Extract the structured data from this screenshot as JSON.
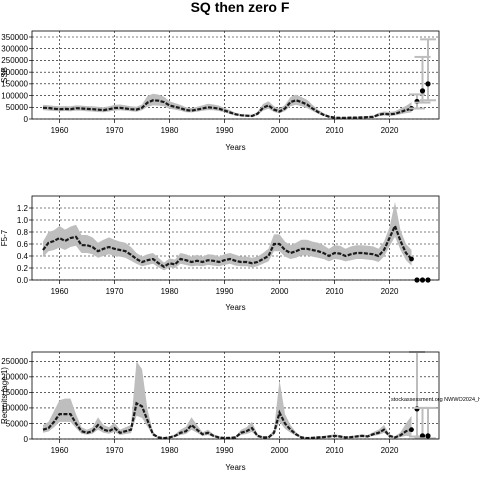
{
  "title": "SQ then zero F",
  "watermark": "stockassessment.org NWWO2024_h",
  "colors": {
    "band": "#bebebe",
    "line": "#1a1a1a",
    "grid": "#000000"
  },
  "chart_data": [
    {
      "type": "area",
      "xlabel": "Years",
      "ylabel": "SSB",
      "xlim": [
        1955,
        2029
      ],
      "ylim": [
        0,
        350000
      ],
      "xticks": [
        1960,
        1970,
        1980,
        1990,
        2000,
        2010,
        2020
      ],
      "yticks": [
        0,
        50000,
        100000,
        150000,
        200000,
        250000,
        300000,
        350000
      ],
      "grid": true,
      "series": [
        {
          "x": [
            1957,
            1958,
            1959,
            1960,
            1961,
            1962,
            1963,
            1964,
            1965,
            1966,
            1967,
            1968,
            1969,
            1970,
            1971,
            1972,
            1973,
            1974,
            1975,
            1976,
            1977,
            1978,
            1979,
            1980,
            1981,
            1982,
            1983,
            1984,
            1985,
            1986,
            1987,
            1988,
            1989,
            1990,
            1991,
            1992,
            1993,
            1994,
            1995,
            1996,
            1997,
            1998,
            1999,
            2000,
            2001,
            2002,
            2003,
            2004,
            2005,
            2006,
            2007,
            2008,
            2009,
            2010,
            2011,
            2012,
            2013,
            2014,
            2015,
            2016,
            2017,
            2018,
            2019,
            2020,
            2021,
            2022,
            2023,
            2024
          ],
          "y": [
            48000,
            47000,
            44000,
            42000,
            43000,
            42000,
            46000,
            45000,
            43000,
            42000,
            40000,
            38000,
            42000,
            47000,
            48000,
            45000,
            42000,
            40000,
            48000,
            70000,
            80000,
            78000,
            72000,
            58000,
            52000,
            46000,
            38000,
            36000,
            40000,
            45000,
            50000,
            48000,
            44000,
            36000,
            28000,
            20000,
            16000,
            14000,
            13000,
            22000,
            48000,
            58000,
            40000,
            32000,
            45000,
            72000,
            80000,
            72000,
            62000,
            45000,
            30000,
            18000,
            10000,
            6000,
            5000,
            5000,
            6000,
            6000,
            7000,
            8000,
            9000,
            18000,
            22000,
            20000,
            22000,
            30000,
            38000,
            45000
          ],
          "low": [
            38000,
            36000,
            34000,
            33000,
            34000,
            33000,
            36000,
            35000,
            33000,
            32000,
            30000,
            29000,
            32000,
            36000,
            37000,
            35000,
            33000,
            31000,
            37000,
            52000,
            58000,
            57000,
            54000,
            44000,
            40000,
            35000,
            29000,
            28000,
            31000,
            35000,
            38000,
            37000,
            34000,
            28000,
            21000,
            15000,
            12000,
            10000,
            9000,
            16000,
            36000,
            44000,
            30000,
            24000,
            34000,
            55000,
            60000,
            55000,
            47000,
            34000,
            23000,
            13000,
            7000,
            4000,
            3000,
            3000,
            4000,
            4000,
            5000,
            5000,
            6000,
            12000,
            15000,
            13000,
            15000,
            20000,
            25000,
            28000
          ],
          "high": [
            60000,
            59000,
            56000,
            54000,
            55000,
            54000,
            58000,
            57000,
            55000,
            54000,
            52000,
            50000,
            54000,
            60000,
            62000,
            58000,
            54000,
            52000,
            62000,
            98000,
            108000,
            104000,
            95000,
            76000,
            68000,
            60000,
            50000,
            47000,
            52000,
            58000,
            65000,
            62000,
            57000,
            47000,
            37000,
            27000,
            21000,
            19000,
            18000,
            30000,
            64000,
            76000,
            54000,
            43000,
            60000,
            94000,
            104000,
            94000,
            82000,
            60000,
            40000,
            25000,
            15000,
            9000,
            8000,
            8000,
            9000,
            9000,
            10000,
            12000,
            14000,
            26000,
            32000,
            30000,
            33000,
            45000,
            56000,
            72000
          ]
        }
      ],
      "projection": {
        "x": [
          2025,
          2026,
          2027
        ],
        "y": [
          75000,
          120000,
          150000
        ],
        "low": [
          45000,
          70000,
          80000
        ],
        "high": [
          105000,
          265000,
          340000
        ]
      }
    },
    {
      "type": "area",
      "xlabel": "Years",
      "ylabel": "F5-7",
      "xlim": [
        1955,
        2029
      ],
      "ylim": [
        0,
        1.4
      ],
      "xticks": [
        1960,
        1970,
        1980,
        1990,
        2000,
        2010,
        2020
      ],
      "yticks": [
        0.0,
        0.2,
        0.4,
        0.6,
        0.8,
        1.0,
        1.2
      ],
      "ytick_labels": [
        "0.0",
        "0.2",
        "0.4",
        "0.6",
        "0.8",
        "1.0",
        "1.2"
      ],
      "grid": true,
      "series": [
        {
          "x": [
            1957,
            1958,
            1959,
            1960,
            1961,
            1962,
            1963,
            1964,
            1965,
            1966,
            1967,
            1968,
            1969,
            1970,
            1971,
            1972,
            1973,
            1974,
            1975,
            1976,
            1977,
            1978,
            1979,
            1980,
            1981,
            1982,
            1983,
            1984,
            1985,
            1986,
            1987,
            1988,
            1989,
            1990,
            1991,
            1992,
            1993,
            1994,
            1995,
            1996,
            1997,
            1998,
            1999,
            2000,
            2001,
            2002,
            2003,
            2004,
            2005,
            2006,
            2007,
            2008,
            2009,
            2010,
            2011,
            2012,
            2013,
            2014,
            2015,
            2016,
            2017,
            2018,
            2019,
            2020,
            2021,
            2022,
            2023,
            2024
          ],
          "y": [
            0.5,
            0.62,
            0.65,
            0.7,
            0.65,
            0.7,
            0.72,
            0.58,
            0.58,
            0.55,
            0.48,
            0.52,
            0.55,
            0.52,
            0.5,
            0.48,
            0.42,
            0.35,
            0.3,
            0.33,
            0.35,
            0.28,
            0.22,
            0.28,
            0.26,
            0.35,
            0.33,
            0.3,
            0.32,
            0.3,
            0.33,
            0.32,
            0.3,
            0.33,
            0.35,
            0.32,
            0.3,
            0.3,
            0.28,
            0.3,
            0.35,
            0.4,
            0.6,
            0.6,
            0.5,
            0.45,
            0.48,
            0.52,
            0.52,
            0.5,
            0.48,
            0.45,
            0.4,
            0.45,
            0.44,
            0.4,
            0.43,
            0.45,
            0.45,
            0.44,
            0.43,
            0.4,
            0.5,
            0.7,
            0.9,
            0.65,
            0.45,
            0.35
          ],
          "low": [
            0.38,
            0.48,
            0.5,
            0.54,
            0.5,
            0.55,
            0.57,
            0.45,
            0.45,
            0.43,
            0.37,
            0.4,
            0.43,
            0.4,
            0.39,
            0.37,
            0.32,
            0.27,
            0.23,
            0.25,
            0.27,
            0.21,
            0.16,
            0.21,
            0.2,
            0.27,
            0.25,
            0.23,
            0.24,
            0.23,
            0.25,
            0.24,
            0.23,
            0.25,
            0.27,
            0.24,
            0.23,
            0.23,
            0.21,
            0.23,
            0.27,
            0.31,
            0.48,
            0.48,
            0.39,
            0.35,
            0.37,
            0.41,
            0.41,
            0.39,
            0.37,
            0.35,
            0.31,
            0.35,
            0.34,
            0.31,
            0.33,
            0.35,
            0.35,
            0.34,
            0.33,
            0.3,
            0.39,
            0.56,
            0.72,
            0.5,
            0.33,
            0.24
          ],
          "high": [
            0.64,
            0.8,
            0.83,
            0.9,
            0.84,
            0.89,
            0.92,
            0.75,
            0.75,
            0.71,
            0.62,
            0.67,
            0.71,
            0.67,
            0.64,
            0.62,
            0.55,
            0.45,
            0.39,
            0.43,
            0.45,
            0.37,
            0.29,
            0.36,
            0.34,
            0.45,
            0.43,
            0.39,
            0.42,
            0.39,
            0.43,
            0.42,
            0.39,
            0.43,
            0.45,
            0.42,
            0.39,
            0.39,
            0.37,
            0.39,
            0.45,
            0.52,
            0.76,
            0.76,
            0.64,
            0.58,
            0.62,
            0.67,
            0.67,
            0.64,
            0.62,
            0.58,
            0.52,
            0.58,
            0.57,
            0.52,
            0.56,
            0.58,
            0.58,
            0.57,
            0.56,
            0.52,
            0.64,
            0.88,
            1.3,
            0.83,
            0.6,
            0.5
          ]
        }
      ],
      "projection": {
        "x": [
          2025,
          2026,
          2027
        ],
        "y": [
          0,
          0,
          0
        ],
        "low": [
          0,
          0,
          0
        ],
        "high": [
          0,
          0,
          0
        ]
      }
    },
    {
      "type": "area",
      "xlabel": "Years",
      "ylabel": "Recruits (age 1)",
      "xlim": [
        1955,
        2029
      ],
      "ylim": [
        0,
        280000
      ],
      "xticks": [
        1960,
        1970,
        1980,
        1990,
        2000,
        2010,
        2020
      ],
      "yticks": [
        0,
        50000,
        100000,
        150000,
        200000,
        250000
      ],
      "grid": true,
      "series": [
        {
          "x": [
            1957,
            1958,
            1959,
            1960,
            1961,
            1962,
            1963,
            1964,
            1965,
            1966,
            1967,
            1968,
            1969,
            1970,
            1971,
            1972,
            1973,
            1974,
            1975,
            1976,
            1977,
            1978,
            1979,
            1980,
            1981,
            1982,
            1983,
            1984,
            1985,
            1986,
            1987,
            1988,
            1989,
            1990,
            1991,
            1992,
            1993,
            1994,
            1995,
            1996,
            1997,
            1998,
            1999,
            2000,
            2001,
            2002,
            2003,
            2004,
            2005,
            2006,
            2007,
            2008,
            2009,
            2010,
            2011,
            2012,
            2013,
            2014,
            2015,
            2016,
            2017,
            2018,
            2019,
            2020,
            2021,
            2022,
            2023,
            2024
          ],
          "y": [
            30000,
            35000,
            55000,
            80000,
            80000,
            80000,
            50000,
            25000,
            20000,
            25000,
            45000,
            30000,
            25000,
            35000,
            20000,
            25000,
            30000,
            115000,
            105000,
            60000,
            15000,
            5000,
            3000,
            5000,
            10000,
            20000,
            25000,
            45000,
            30000,
            15000,
            20000,
            10000,
            5000,
            3000,
            4000,
            5000,
            20000,
            25000,
            35000,
            10000,
            5000,
            5000,
            20000,
            85000,
            50000,
            30000,
            15000,
            5000,
            3000,
            4000,
            5000,
            6000,
            8000,
            10000,
            8000,
            5000,
            6000,
            8000,
            10000,
            8000,
            15000,
            20000,
            30000,
            10000,
            5000,
            12000,
            25000,
            30000
          ],
          "low": [
            20000,
            24000,
            38000,
            55000,
            55000,
            55000,
            35000,
            17000,
            14000,
            17000,
            30000,
            20000,
            17000,
            23000,
            13000,
            16000,
            19000,
            75000,
            68000,
            40000,
            10000,
            3000,
            2000,
            3000,
            6000,
            13000,
            16000,
            30000,
            20000,
            10000,
            13000,
            6000,
            3000,
            2000,
            2000,
            3000,
            13000,
            16000,
            23000,
            6000,
            3000,
            3000,
            13000,
            55000,
            33000,
            20000,
            10000,
            3000,
            2000,
            2000,
            3000,
            4000,
            5000,
            6000,
            5000,
            3000,
            4000,
            5000,
            6000,
            5000,
            10000,
            13000,
            20000,
            6000,
            3000,
            6000,
            10000,
            8000
          ],
          "high": [
            45000,
            55000,
            90000,
            125000,
            130000,
            130000,
            80000,
            38000,
            30000,
            38000,
            70000,
            45000,
            38000,
            52000,
            30000,
            38000,
            45000,
            250000,
            225000,
            95000,
            22000,
            8000,
            5000,
            8000,
            15000,
            30000,
            40000,
            70000,
            45000,
            22000,
            30000,
            15000,
            8000,
            5000,
            6000,
            8000,
            30000,
            38000,
            55000,
            15000,
            8000,
            8000,
            30000,
            190000,
            80000,
            45000,
            22000,
            8000,
            5000,
            6000,
            8000,
            9000,
            12000,
            15000,
            12000,
            8000,
            9000,
            12000,
            15000,
            12000,
            22000,
            30000,
            45000,
            15000,
            8000,
            22000,
            50000,
            75000
          ]
        }
      ],
      "projection": {
        "x": [
          2025,
          2026,
          2027
        ],
        "y": [
          97000,
          10000,
          10000
        ],
        "low": [
          8000,
          2000,
          2000
        ],
        "high": [
          280000,
          100000,
          100000
        ]
      }
    }
  ]
}
